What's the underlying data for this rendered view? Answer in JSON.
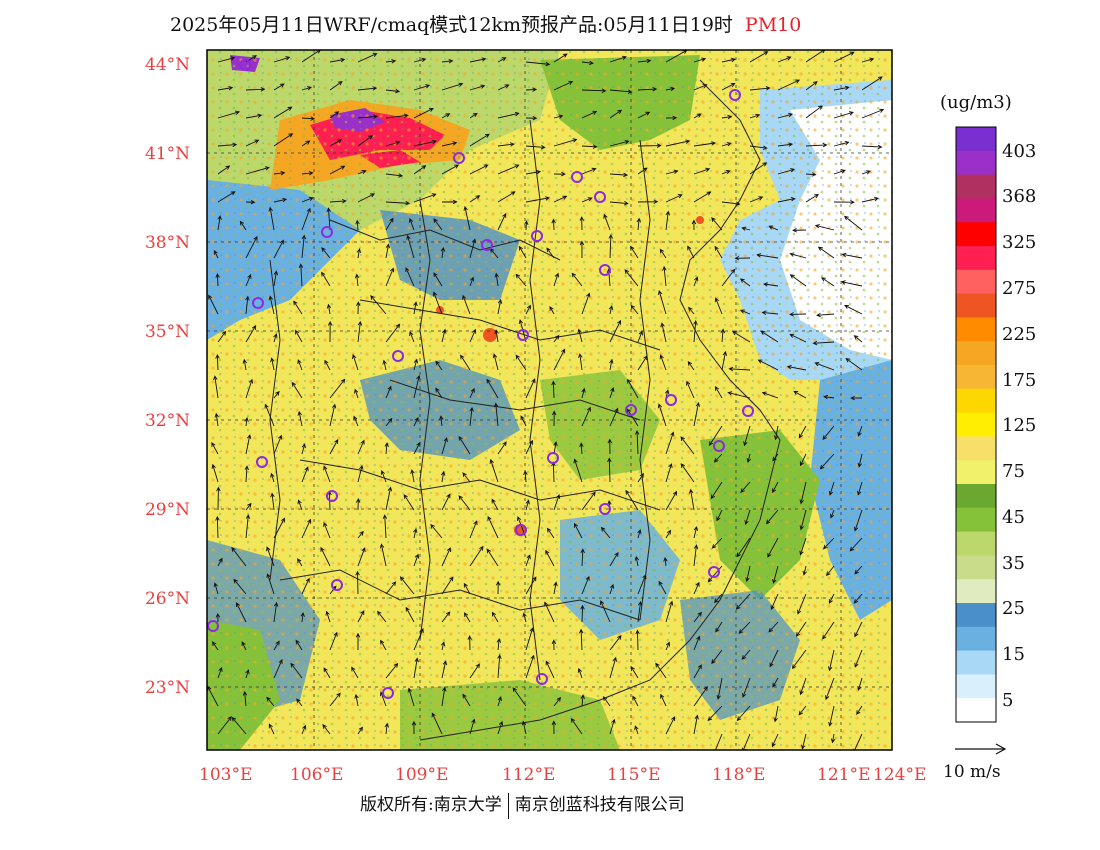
{
  "title": {
    "text": "2025年05月11日WRF/cmaq模式12km预报产品:05月11日19时",
    "species": "PM10"
  },
  "latitude_labels": [
    "44°N",
    "41°N",
    "38°N",
    "35°N",
    "32°N",
    "29°N",
    "26°N",
    "23°N"
  ],
  "longitude_labels": [
    "103°E",
    "106°E",
    "109°E",
    "112°E",
    "115°E",
    "118°E",
    "121°E",
    "124°E"
  ],
  "colorbar": {
    "unit": "(ug/m3)",
    "labels": [
      "403",
      "368",
      "325",
      "275",
      "225",
      "175",
      "125",
      "75",
      "45",
      "35",
      "25",
      "15",
      "5"
    ],
    "colors": [
      "#7a2fd0",
      "#9b30c8",
      "#b03060",
      "#cc1a7a",
      "#ff0000",
      "#ff1f50",
      "#ff6060",
      "#ee5522",
      "#ff8c00",
      "#f5a623",
      "#f7b733",
      "#ffd700",
      "#ffee00",
      "#f7e06a",
      "#f2f26a",
      "#6aa830",
      "#85c23a",
      "#bcd86a",
      "#c8dc8a",
      "#e0ecc0",
      "#4a8fc8",
      "#6ab0e0",
      "#a8d8f5",
      "#d8f0fb",
      "#ffffff"
    ]
  },
  "wind_reference": "10 m/s",
  "copyright": {
    "left": "版权所有:南京大学",
    "right": "南京创蓝科技有限公司"
  },
  "map_colors": {
    "land_base": "#f2e65a",
    "ocean": "#ffffff",
    "border_color": "#222222",
    "station_color": "#8a2be2"
  }
}
